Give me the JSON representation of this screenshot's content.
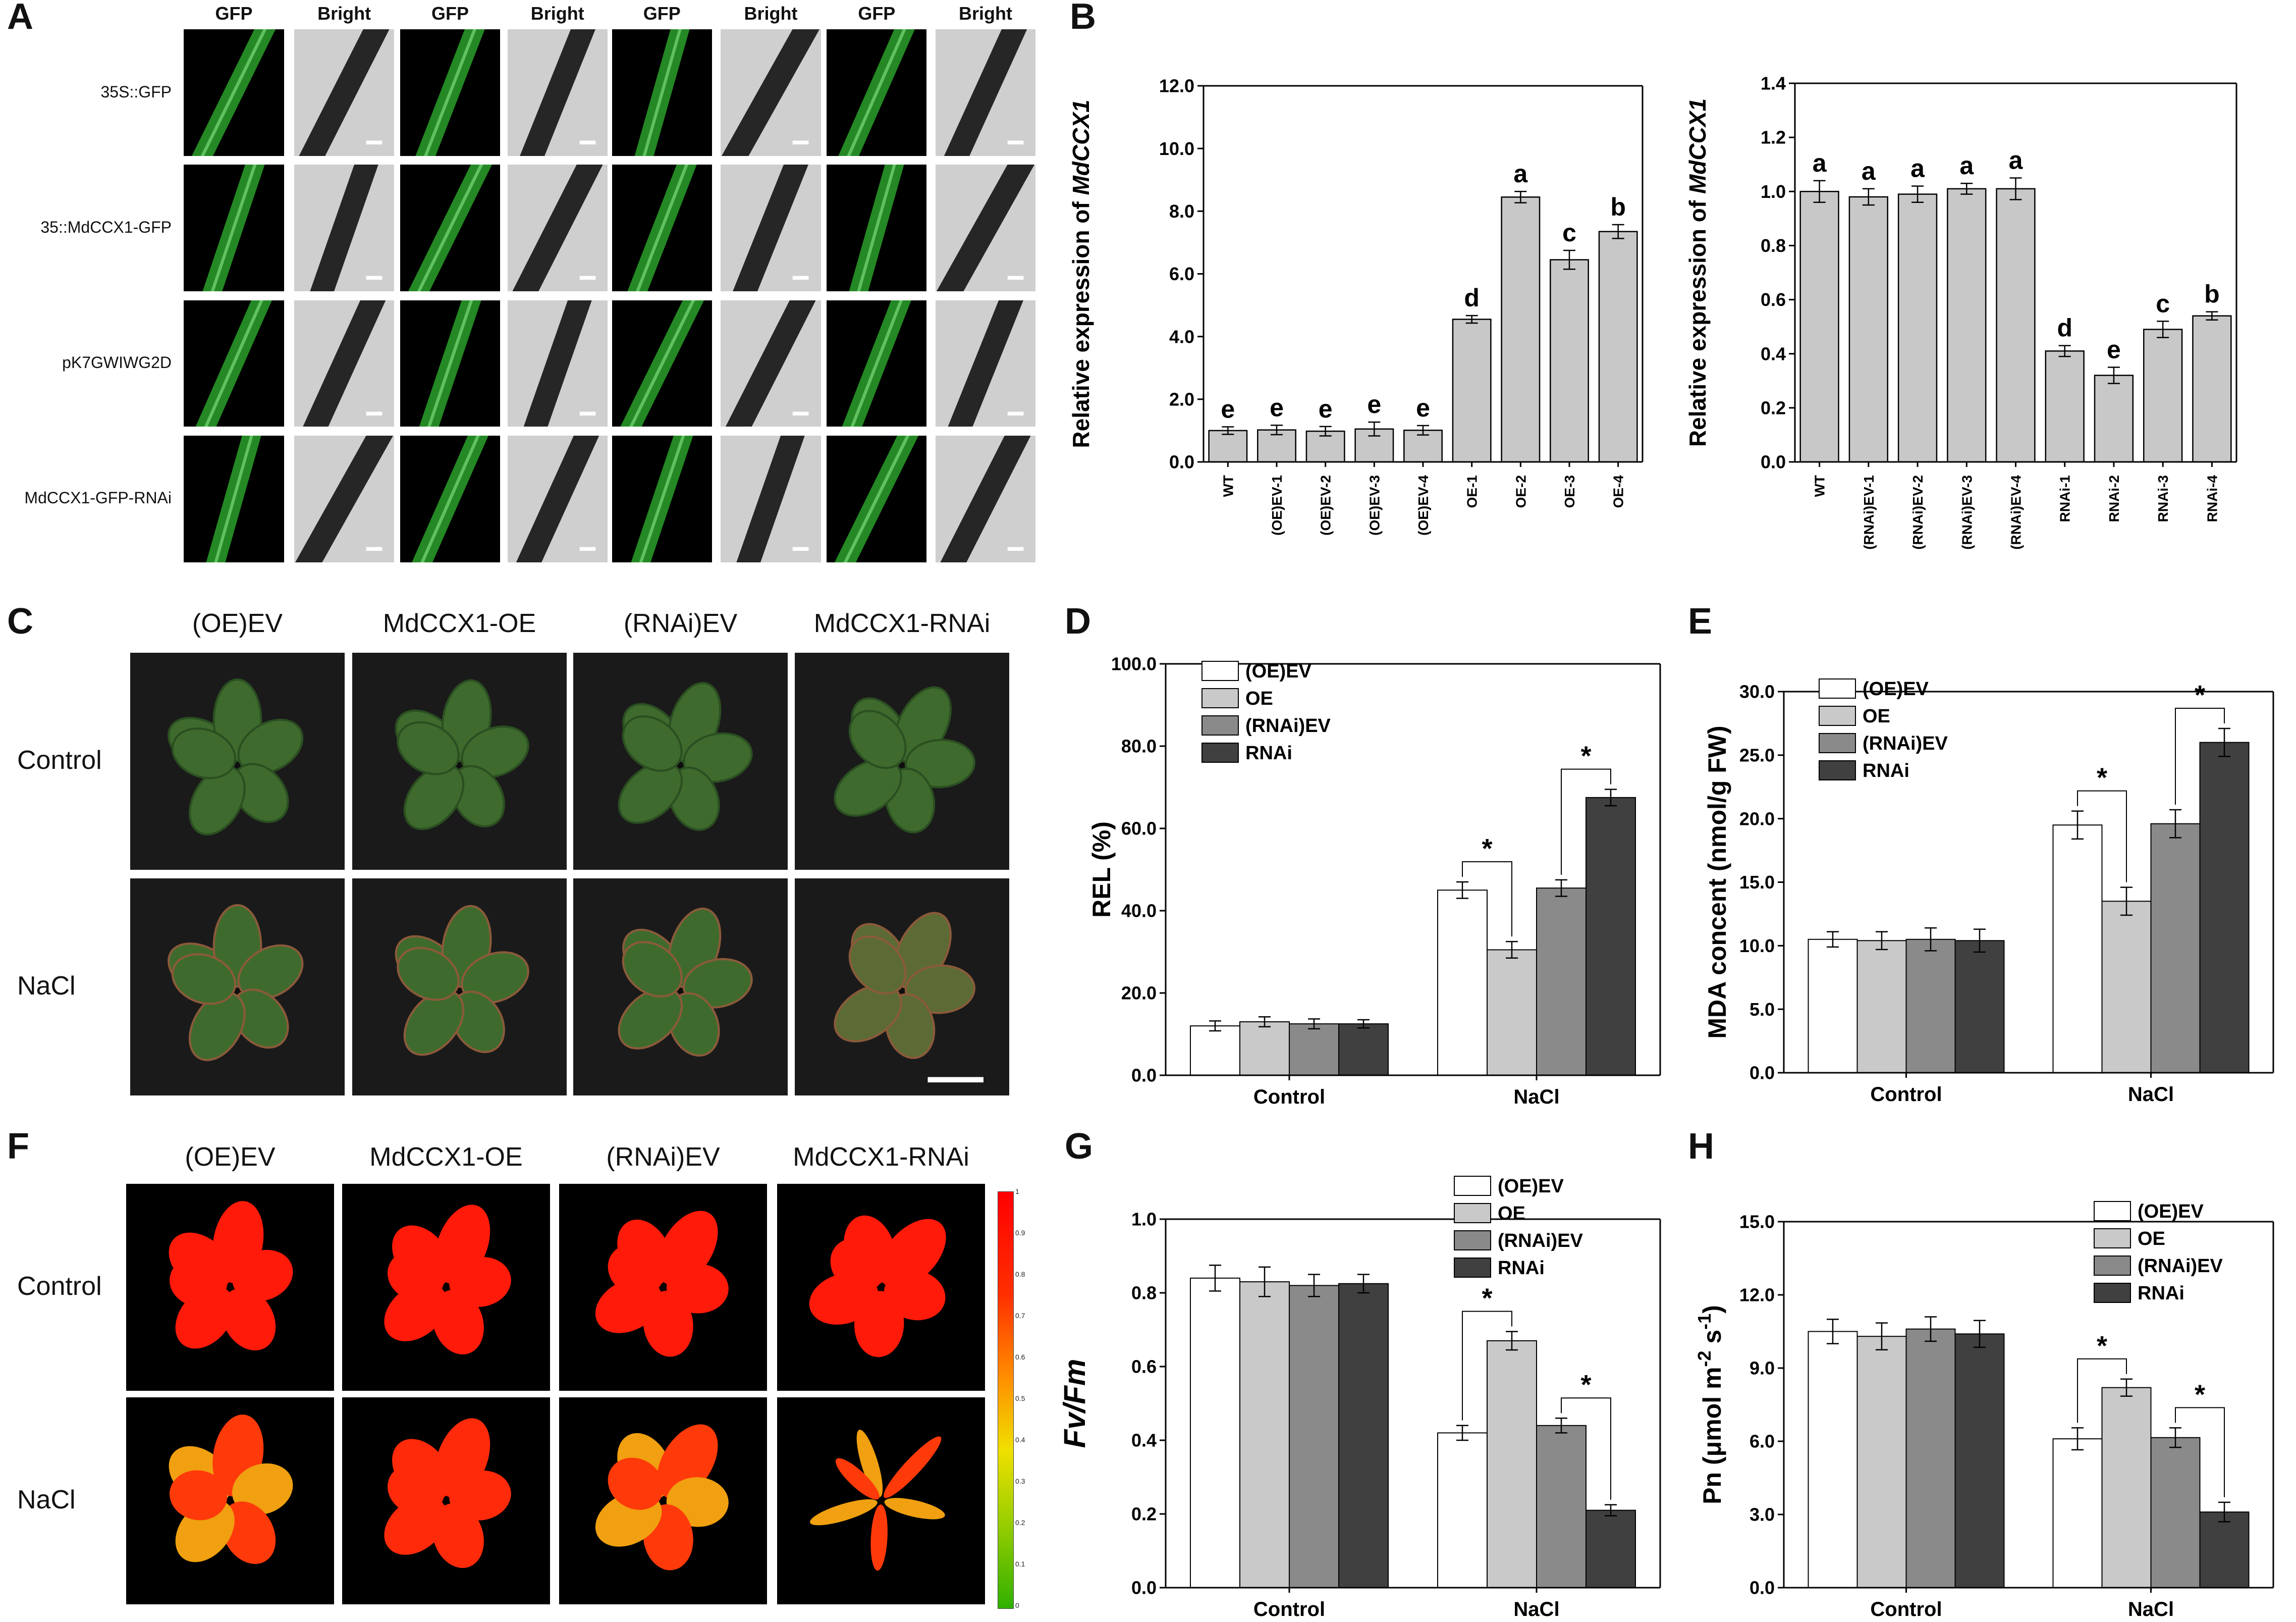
{
  "panels": {
    "A": {
      "letter": "A",
      "col_headers": [
        "GFP",
        "Bright",
        "GFP",
        "Bright",
        "GFP",
        "Bright",
        "GFP",
        "Bright"
      ],
      "rows": [
        "35S::GFP",
        "35::MdCCX1-GFP",
        "pK7GWIWG2D",
        "MdCCX1-GFP-RNAi"
      ]
    },
    "C": {
      "letter": "C",
      "cols": [
        "(OE)EV",
        "MdCCX1-OE",
        "(RNAi)EV",
        "MdCCX1-RNAi"
      ],
      "rows": [
        "Control",
        "NaCl"
      ]
    },
    "F": {
      "letter": "F",
      "cols": [
        "(OE)EV",
        "MdCCX1-OE",
        "(RNAi)EV",
        "MdCCX1-RNAi"
      ],
      "rows": [
        "Control",
        "NaCl"
      ],
      "colorbar_ticks": [
        "1",
        "0.9",
        "0.8",
        "0.7",
        "0.6",
        "0.5",
        "0.4",
        "0.3",
        "0.2",
        "0.1",
        "0"
      ]
    }
  },
  "colors": {
    "white_bar": "#ffffff",
    "light_bar": "#c9c9c9",
    "mid_bar": "#8a8a8a",
    "dark_bar": "#404040",
    "gray_bar": "#c8c8c8",
    "gfp_green": "#2aa02a"
  },
  "chart_data": [
    {
      "id": "B1",
      "letter": "B",
      "type": "bar",
      "ylabel_plain": "Relative expression of ",
      "ylabel_italic": "MdCCX1",
      "ylim": [
        0,
        12
      ],
      "yticks": [
        "0.0",
        "2.0",
        "4.0",
        "6.0",
        "8.0",
        "10.0",
        "12.0"
      ],
      "categories": [
        "WT",
        "(OE)EV-1",
        "(OE)EV-2",
        "(OE)EV-3",
        "(OE)EV-4",
        "OE-1",
        "OE-2",
        "OE-3",
        "OE-4"
      ],
      "values": [
        1.0,
        1.02,
        0.98,
        1.05,
        1.01,
        4.55,
        8.45,
        6.45,
        7.35
      ],
      "errors": [
        0.12,
        0.15,
        0.15,
        0.22,
        0.15,
        0.12,
        0.18,
        0.3,
        0.22
      ],
      "letters": [
        "e",
        "e",
        "e",
        "e",
        "e",
        "d",
        "a",
        "c",
        "b"
      ]
    },
    {
      "id": "B2",
      "type": "bar",
      "ylabel_plain": "Relative expression of ",
      "ylabel_italic": "MdCCX1",
      "ylim": [
        0,
        1.4
      ],
      "yticks": [
        "0.0",
        "0.2",
        "0.4",
        "0.6",
        "0.8",
        "1.0",
        "1.2",
        "1.4"
      ],
      "categories": [
        "WT",
        "(RNAi)EV-1",
        "(RNAi)EV-2",
        "(RNAi)EV-3",
        "(RNAi)EV-4",
        "RNAi-1",
        "RNAi-2",
        "RNAi-3",
        "RNAi-4"
      ],
      "values": [
        1.0,
        0.98,
        0.99,
        1.01,
        1.01,
        0.41,
        0.32,
        0.49,
        0.54
      ],
      "errors": [
        0.04,
        0.03,
        0.03,
        0.02,
        0.04,
        0.02,
        0.03,
        0.03,
        0.015
      ],
      "letters": [
        "a",
        "a",
        "a",
        "a",
        "a",
        "d",
        "e",
        "c",
        "b"
      ]
    },
    {
      "id": "D",
      "letter": "D",
      "type": "bar",
      "ylabel": "REL (%)",
      "ylim": [
        0,
        100
      ],
      "yticks": [
        "0.0",
        "20.0",
        "40.0",
        "60.0",
        "80.0",
        "100.0"
      ],
      "categories": [
        "Control",
        "NaCl"
      ],
      "legend": [
        "(OE)EV",
        "OE",
        "(RNAi)EV",
        "RNAi"
      ],
      "series": [
        {
          "name": "(OE)EV",
          "values": [
            12.0,
            45.0
          ],
          "errors": [
            1.2,
            2.0
          ]
        },
        {
          "name": "OE",
          "values": [
            13.0,
            30.5
          ],
          "errors": [
            1.2,
            2.0
          ]
        },
        {
          "name": "(RNAi)EV",
          "values": [
            12.5,
            45.5
          ],
          "errors": [
            1.2,
            2.0
          ]
        },
        {
          "name": "RNAi",
          "values": [
            12.5,
            67.5
          ],
          "errors": [
            1.0,
            2.0
          ]
        }
      ],
      "significance": "*"
    },
    {
      "id": "E",
      "letter": "E",
      "type": "bar",
      "ylabel": "MDA concent (nmol/g FW)",
      "ylim": [
        0,
        30
      ],
      "yticks": [
        "0.0",
        "5.0",
        "10.0",
        "15.0",
        "20.0",
        "25.0",
        "30.0"
      ],
      "categories": [
        "Control",
        "NaCl"
      ],
      "legend": [
        "(OE)EV",
        "OE",
        "(RNAi)EV",
        "RNAi"
      ],
      "series": [
        {
          "name": "(OE)EV",
          "values": [
            10.5,
            19.5
          ],
          "errors": [
            0.6,
            1.1
          ]
        },
        {
          "name": "OE",
          "values": [
            10.4,
            13.5
          ],
          "errors": [
            0.7,
            1.1
          ]
        },
        {
          "name": "(RNAi)EV",
          "values": [
            10.5,
            19.6
          ],
          "errors": [
            0.9,
            1.1
          ]
        },
        {
          "name": "RNAi",
          "values": [
            10.4,
            26.0
          ],
          "errors": [
            0.9,
            1.1
          ]
        }
      ],
      "significance": "*"
    },
    {
      "id": "G",
      "letter": "G",
      "type": "bar",
      "ylabel": "Fv/Fm",
      "ylim": [
        0,
        1.0
      ],
      "yticks": [
        "0.0",
        "0.2",
        "0.4",
        "0.6",
        "0.8",
        "1.0"
      ],
      "categories": [
        "Control",
        "NaCl"
      ],
      "legend": [
        "(OE)EV",
        "OE",
        "(RNAi)EV",
        "RNAi"
      ],
      "series": [
        {
          "name": "(OE)EV",
          "values": [
            0.84,
            0.42
          ],
          "errors": [
            0.035,
            0.02
          ]
        },
        {
          "name": "OE",
          "values": [
            0.83,
            0.67
          ],
          "errors": [
            0.04,
            0.025
          ]
        },
        {
          "name": "(RNAi)EV",
          "values": [
            0.82,
            0.44
          ],
          "errors": [
            0.03,
            0.02
          ]
        },
        {
          "name": "RNAi",
          "values": [
            0.825,
            0.21
          ],
          "errors": [
            0.025,
            0.015
          ]
        }
      ],
      "significance": "*"
    },
    {
      "id": "H",
      "letter": "H",
      "type": "bar",
      "ylabel_plain": "Pn (μmol m",
      "ylabel_sup1": "-2",
      "ylabel_mid": " s",
      "ylabel_sup2": "-1",
      "ylabel_end": ")",
      "ylim": [
        0,
        15
      ],
      "yticks": [
        "0.0",
        "3.0",
        "6.0",
        "9.0",
        "12.0",
        "15.0"
      ],
      "categories": [
        "Control",
        "NaCl"
      ],
      "legend": [
        "(OE)EV",
        "OE",
        "(RNAi)EV",
        "RNAi"
      ],
      "series": [
        {
          "name": "(OE)EV",
          "values": [
            10.5,
            6.1
          ],
          "errors": [
            0.5,
            0.45
          ]
        },
        {
          "name": "OE",
          "values": [
            10.3,
            8.2
          ],
          "errors": [
            0.55,
            0.35
          ]
        },
        {
          "name": "(RNAi)EV",
          "values": [
            10.6,
            6.15
          ],
          "errors": [
            0.5,
            0.4
          ]
        },
        {
          "name": "RNAi",
          "values": [
            10.4,
            3.1
          ],
          "errors": [
            0.55,
            0.4
          ]
        }
      ],
      "significance": "*"
    }
  ]
}
